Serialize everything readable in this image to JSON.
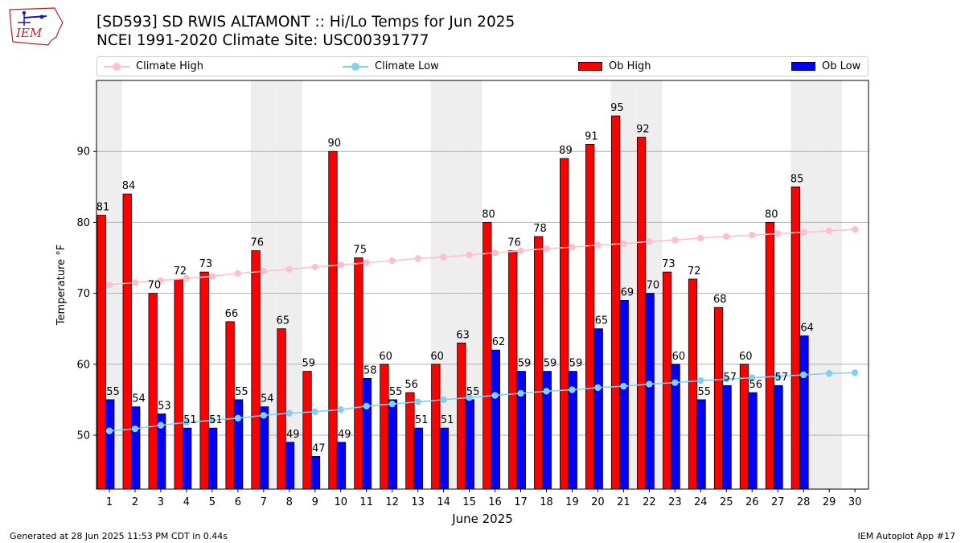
{
  "header": {
    "title_line1": "[SD593] SD RWIS ALTAMONT :: Hi/Lo Temps for Jun 2025",
    "title_line2": "NCEI 1991-2020 Climate Site: USC00391777",
    "logo_text": "IEM"
  },
  "legend": {
    "climate_high": "Climate High",
    "climate_low": "Climate Low",
    "ob_high": "Ob High",
    "ob_low": "Ob Low"
  },
  "colors": {
    "ob_high": "#ff0000",
    "ob_low": "#0000ff",
    "climate_high": "#ffc0cb",
    "climate_low": "#87ceeb",
    "weekend_band": "#eeeeee",
    "grid": "#b0b0b0"
  },
  "footer": {
    "generated": "Generated at 28 Jun 2025 11:53 PM CDT in 0.44s",
    "app": "IEM Autoplot App #17"
  },
  "chart_data": {
    "type": "bar",
    "xlabel": "June 2025",
    "ylabel": "Temperature °F",
    "ylim": [
      42.4,
      100
    ],
    "yticks": [
      50,
      60,
      70,
      80,
      90
    ],
    "grid": "horizontal",
    "legend_position": "top",
    "categories": [
      1,
      2,
      3,
      4,
      5,
      6,
      7,
      8,
      9,
      10,
      11,
      12,
      13,
      14,
      15,
      16,
      17,
      18,
      19,
      20,
      21,
      22,
      23,
      24,
      25,
      26,
      27,
      28,
      29,
      30
    ],
    "shaded_days": [
      1,
      7,
      8,
      14,
      15,
      21,
      22,
      28,
      29
    ],
    "series": [
      {
        "name": "Ob High",
        "kind": "bar",
        "values": [
          81,
          84,
          70,
          72,
          73,
          66,
          76,
          65,
          59,
          90,
          75,
          60,
          56,
          60,
          63,
          80,
          76,
          78,
          89,
          91,
          95,
          92,
          73,
          72,
          68,
          60,
          80,
          85,
          null,
          null
        ]
      },
      {
        "name": "Ob Low",
        "kind": "bar",
        "values": [
          55,
          54,
          53,
          51,
          51,
          55,
          54,
          49,
          47,
          49,
          58,
          55,
          51,
          51,
          55,
          62,
          59,
          59,
          59,
          65,
          69,
          70,
          60,
          55,
          57,
          56,
          57,
          64,
          null,
          null
        ]
      },
      {
        "name": "Climate High",
        "kind": "line",
        "values": [
          71.2,
          71.5,
          71.8,
          72.1,
          72.4,
          72.8,
          73.1,
          73.4,
          73.7,
          74.0,
          74.3,
          74.6,
          74.9,
          75.1,
          75.4,
          75.7,
          76.0,
          76.3,
          76.5,
          76.8,
          77.0,
          77.3,
          77.5,
          77.8,
          78.0,
          78.2,
          78.4,
          78.6,
          78.8,
          79.0
        ]
      },
      {
        "name": "Climate Low",
        "kind": "line",
        "values": [
          50.6,
          50.9,
          51.4,
          51.8,
          52.1,
          52.4,
          52.8,
          53.1,
          53.3,
          53.6,
          54.1,
          54.4,
          54.7,
          55.0,
          55.3,
          55.6,
          55.9,
          56.2,
          56.4,
          56.7,
          56.9,
          57.2,
          57.4,
          57.7,
          57.9,
          58.1,
          58.3,
          58.5,
          58.7,
          58.8
        ]
      }
    ]
  }
}
